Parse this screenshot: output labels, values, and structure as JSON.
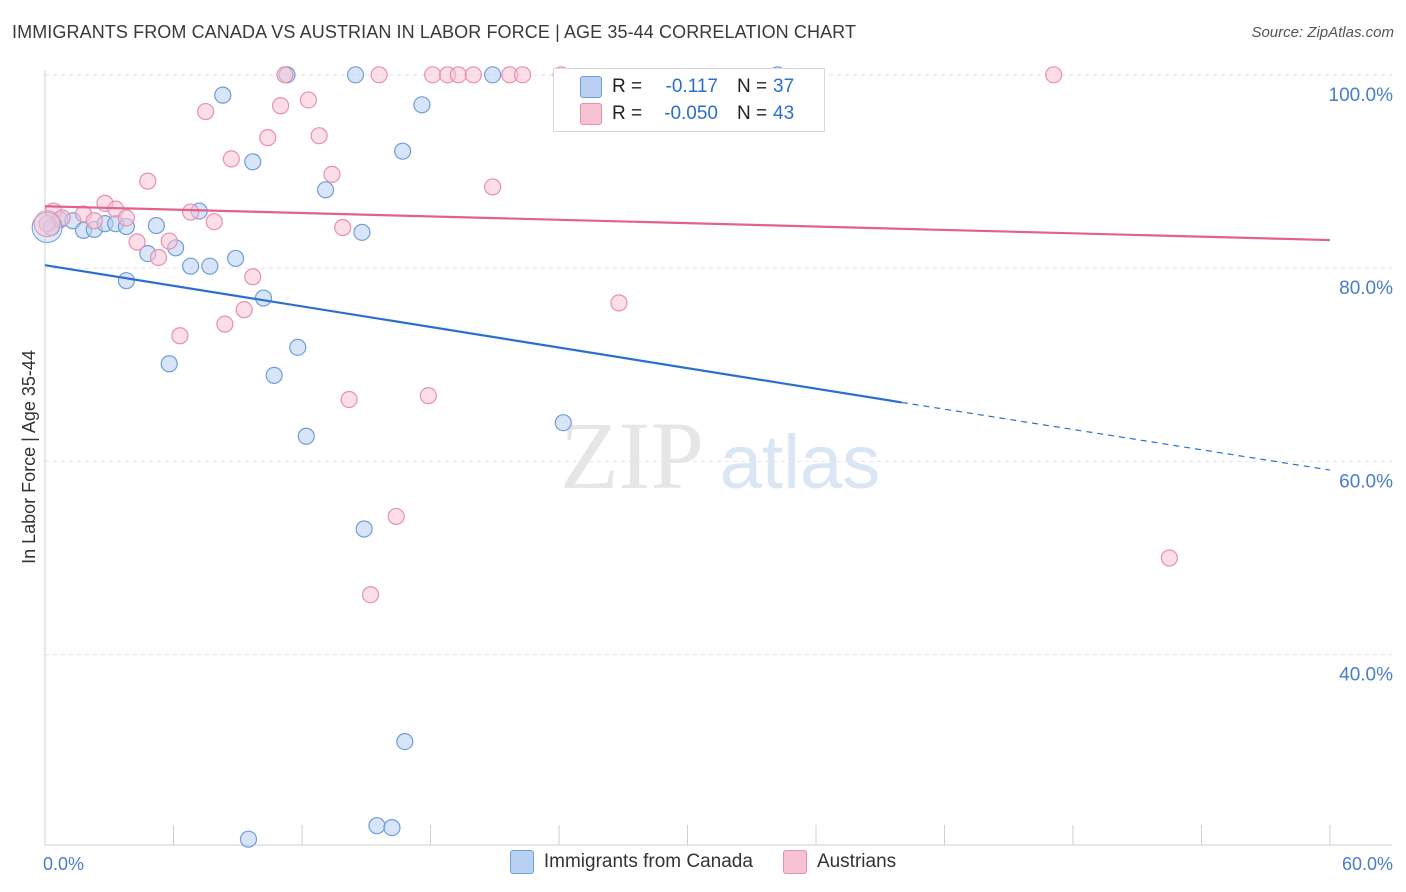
{
  "title": "IMMIGRANTS FROM CANADA VS AUSTRIAN IN LABOR FORCE | AGE 35-44 CORRELATION CHART",
  "source": "Source: ZipAtlas.com",
  "watermark": {
    "zip": "ZIP",
    "atlas": "atlas"
  },
  "colors": {
    "blue_fill": "#b8d0f2",
    "blue_stroke": "#6f9ed8",
    "blue_line": "#2a6fd0",
    "pink_fill": "#f7c3d3",
    "pink_stroke": "#e98fae",
    "pink_line": "#e2618d",
    "tick_text": "#4a7dc9",
    "grid": "#e2e2e2"
  },
  "stats": {
    "blue": {
      "r_label": "R =",
      "r_value": "-0.117",
      "n_label": "N =",
      "n_value": "37"
    },
    "pink": {
      "r_label": "R =",
      "r_value": "-0.050",
      "n_label": "N =",
      "n_value": "43"
    }
  },
  "legend": {
    "series1": "Immigrants from Canada",
    "series2": "Austrians"
  },
  "chart_data": {
    "type": "scatter",
    "title": "IMMIGRANTS FROM CANADA VS AUSTRIAN IN LABOR FORCE | AGE 35-44 CORRELATION CHART",
    "xlabel": "",
    "ylabel": "In Labor Force | Age 35-44",
    "xlim": [
      0,
      60
    ],
    "ylim": [
      20.3,
      100.5
    ],
    "x_tick_labels": [
      "0.0%",
      "60.0%"
    ],
    "y_ticks": [
      40,
      60,
      80,
      100
    ],
    "y_tick_labels": [
      "40.0%",
      "60.0%",
      "80.0%",
      "100.0%"
    ],
    "grid": true,
    "legend_position": "bottom",
    "series": [
      {
        "name": "Immigrants from Canada",
        "color": "#6f9ed8",
        "points": [
          [
            0.3,
            84.2
          ],
          [
            0.7,
            85.0
          ],
          [
            1.3,
            84.9
          ],
          [
            1.8,
            83.9
          ],
          [
            2.3,
            84.0
          ],
          [
            2.8,
            84.6
          ],
          [
            3.3,
            84.6
          ],
          [
            3.8,
            84.3
          ],
          [
            4.8,
            81.5
          ],
          [
            5.2,
            84.4
          ],
          [
            5.8,
            70.1
          ],
          [
            6.1,
            82.1
          ],
          [
            6.8,
            80.2
          ],
          [
            7.2,
            85.9
          ],
          [
            7.7,
            80.2
          ],
          [
            8.3,
            97.9
          ],
          [
            8.9,
            81.0
          ],
          [
            9.5,
            20.9
          ],
          [
            9.7,
            91.0
          ],
          [
            10.2,
            76.9
          ],
          [
            10.7,
            68.9
          ],
          [
            11.3,
            100.0
          ],
          [
            11.8,
            71.8
          ],
          [
            12.2,
            62.6
          ],
          [
            13.1,
            88.1
          ],
          [
            14.5,
            100.0
          ],
          [
            14.8,
            83.7
          ],
          [
            14.9,
            53.0
          ],
          [
            15.5,
            22.3
          ],
          [
            16.2,
            22.1
          ],
          [
            16.7,
            92.1
          ],
          [
            16.8,
            31.0
          ],
          [
            17.6,
            96.9
          ],
          [
            20.9,
            100.0
          ],
          [
            24.2,
            64.0
          ],
          [
            3.8,
            78.7
          ],
          [
            34.2,
            100.0
          ]
        ]
      },
      {
        "name": "Austrians",
        "color": "#e98fae",
        "points": [
          [
            0.4,
            85.9
          ],
          [
            0.8,
            85.2
          ],
          [
            1.8,
            85.6
          ],
          [
            2.3,
            84.9
          ],
          [
            2.8,
            86.7
          ],
          [
            3.3,
            86.1
          ],
          [
            3.8,
            85.2
          ],
          [
            4.3,
            82.7
          ],
          [
            4.8,
            89.0
          ],
          [
            5.3,
            81.1
          ],
          [
            5.8,
            82.8
          ],
          [
            6.3,
            73.0
          ],
          [
            6.8,
            85.8
          ],
          [
            7.5,
            96.2
          ],
          [
            7.9,
            84.8
          ],
          [
            8.4,
            74.2
          ],
          [
            8.7,
            91.3
          ],
          [
            9.3,
            75.7
          ],
          [
            9.7,
            79.1
          ],
          [
            10.4,
            93.5
          ],
          [
            11.0,
            96.8
          ],
          [
            11.2,
            100.0
          ],
          [
            12.3,
            97.4
          ],
          [
            12.8,
            93.7
          ],
          [
            13.4,
            89.7
          ],
          [
            13.9,
            84.2
          ],
          [
            14.2,
            66.4
          ],
          [
            15.2,
            46.2
          ],
          [
            15.6,
            100.0
          ],
          [
            16.4,
            54.3
          ],
          [
            17.9,
            66.8
          ],
          [
            18.1,
            100.0
          ],
          [
            18.8,
            100.0
          ],
          [
            19.3,
            100.0
          ],
          [
            20.0,
            100.0
          ],
          [
            20.9,
            88.4
          ],
          [
            21.7,
            100.0
          ],
          [
            22.3,
            100.0
          ],
          [
            24.1,
            100.0
          ],
          [
            26.8,
            76.4
          ],
          [
            47.1,
            100.0
          ],
          [
            52.5,
            50.0
          ],
          [
            0.1,
            84.6
          ]
        ]
      }
    ],
    "trend_lines": [
      {
        "series": "Immigrants from Canada",
        "x": [
          0,
          40,
          60
        ],
        "y": [
          80.3,
          66.1,
          59.1
        ],
        "dashed_from_x": 40
      },
      {
        "series": "Austrians",
        "x": [
          0,
          60
        ],
        "y": [
          86.4,
          82.9
        ]
      }
    ]
  }
}
